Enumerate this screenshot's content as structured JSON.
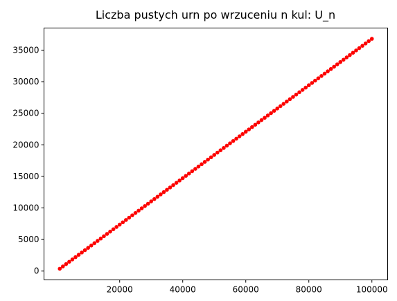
{
  "chart_data": {
    "type": "scatter",
    "title": "Liczba pustych urn po wrzuceniu n kul: U_n",
    "xlabel": "",
    "ylabel": "",
    "xlim": [
      -4000,
      105000
    ],
    "ylim": [
      -1400,
      38500
    ],
    "x_ticks": [
      20000,
      40000,
      60000,
      80000,
      100000
    ],
    "x_tick_labels": [
      "20000",
      "40000",
      "60000",
      "80000",
      "100000"
    ],
    "y_ticks": [
      0,
      5000,
      10000,
      15000,
      20000,
      25000,
      30000,
      35000
    ],
    "y_tick_labels": [
      "0",
      "5000",
      "10000",
      "15000",
      "20000",
      "25000",
      "30000",
      "35000"
    ],
    "grid": false,
    "point_color": "#ff0000",
    "underlay_color": "#2ca02c",
    "series": [
      {
        "x_start": 1000,
        "x_step": 1000,
        "x_end": 100000,
        "y_per_x": 0.3679,
        "note_values": "U_n ≈ 0.3679·n, one point every 1000 from 1000 to 100000"
      }
    ]
  }
}
